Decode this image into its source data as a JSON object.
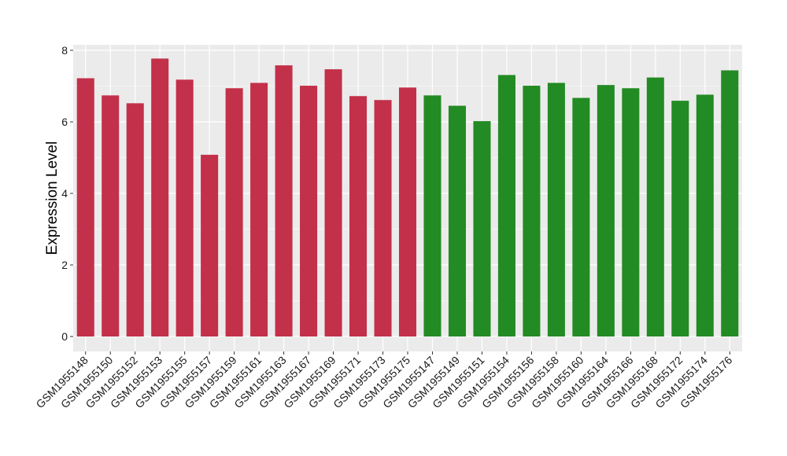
{
  "chart_data": {
    "type": "bar",
    "title": "",
    "xlabel": "",
    "ylabel": "Expression Level",
    "ylim": [
      0,
      8.2
    ],
    "yticks": [
      0,
      2,
      4,
      6,
      8
    ],
    "grid": true,
    "legend": "none",
    "panel_color": "#ebebeb",
    "gridline_color": "#ffffff",
    "categories": [
      "GSM1955148",
      "GSM1955150",
      "GSM1955152",
      "GSM1955153",
      "GSM1955155",
      "GSM1955157",
      "GSM1955159",
      "GSM1955161",
      "GSM1955163",
      "GSM1955167",
      "GSM1955169",
      "GSM1955171",
      "GSM1955173",
      "GSM1955175",
      "GSM1955147",
      "GSM1955149",
      "GSM1955151",
      "GSM1955154",
      "GSM1955156",
      "GSM1955158",
      "GSM1955160",
      "GSM1955164",
      "GSM1955166",
      "GSM1955168",
      "GSM1955172",
      "GSM1955174",
      "GSM1955176"
    ],
    "series": [
      {
        "color": "#c3304a",
        "values": [
          7.22,
          6.74,
          6.52,
          7.77,
          7.18,
          5.08,
          6.94,
          7.09,
          7.58,
          7.01,
          7.47,
          6.72,
          6.61,
          6.96,
          null,
          null,
          null,
          null,
          null,
          null,
          null,
          null,
          null,
          null,
          null,
          null,
          null
        ]
      },
      {
        "color": "#238b23",
        "values": [
          null,
          null,
          null,
          null,
          null,
          null,
          null,
          null,
          null,
          null,
          null,
          null,
          null,
          null,
          6.74,
          6.45,
          6.02,
          7.31,
          7.01,
          7.09,
          6.67,
          7.03,
          6.94,
          7.24,
          6.59,
          6.76,
          7.44
        ]
      }
    ]
  }
}
